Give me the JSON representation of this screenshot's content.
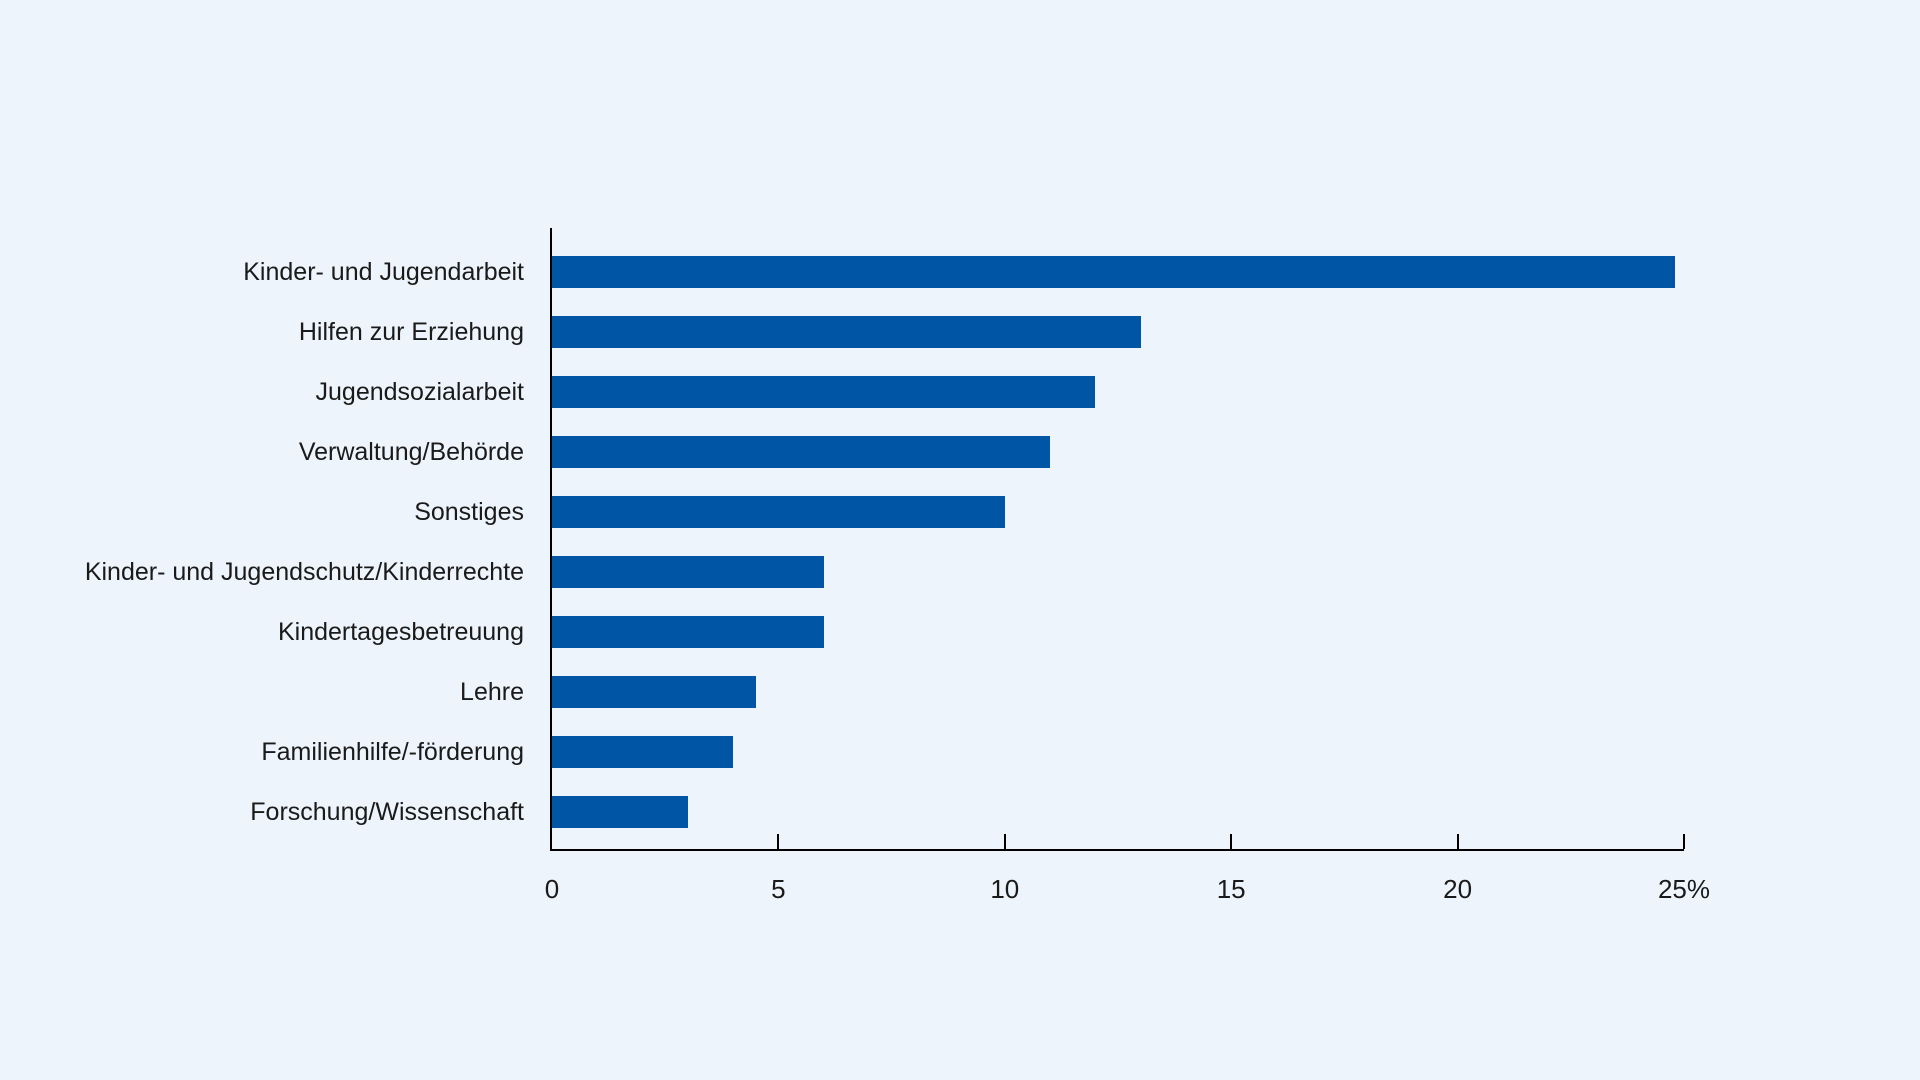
{
  "chart_data": {
    "type": "bar",
    "orientation": "horizontal",
    "title": "",
    "xlabel": "",
    "ylabel": "",
    "unit": "%",
    "categories": [
      "Kinder- und Jugendarbeit",
      "Hilfen zur Erziehung",
      "Jugendsozialarbeit",
      "Verwaltung/Behörde",
      "Sonstiges",
      "Kinder- und Jugendschutz/Kinderrechte",
      "Kindertagesbetreuung",
      "Lehre",
      "Familienhilfe/-förderung",
      "Forschung/Wissenschaft"
    ],
    "values": [
      24.8,
      13,
      12,
      11,
      10,
      6,
      6,
      4.5,
      4,
      3
    ],
    "xlim": [
      0,
      25
    ],
    "x_ticks": [
      0,
      5,
      10,
      15,
      20,
      25
    ],
    "x_tick_labels": [
      "0",
      "5",
      "10",
      "15",
      "20",
      "25%"
    ],
    "grid": false,
    "legend": null,
    "colors": {
      "bar": "#0055a4",
      "background": "#edf4fb",
      "text": "#1a1a1a",
      "axis": "#000000"
    }
  }
}
